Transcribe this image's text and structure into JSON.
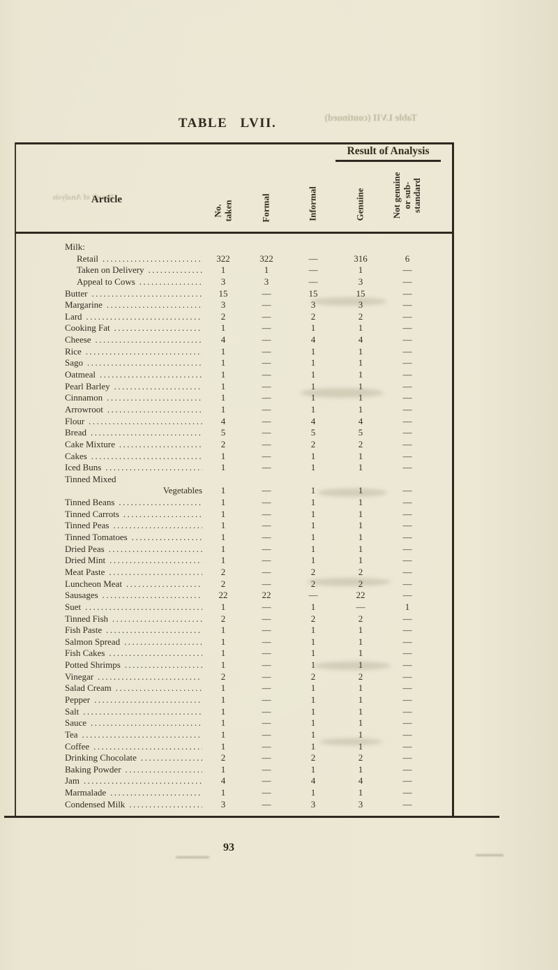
{
  "page": {
    "title": "TABLE LVII.",
    "page_number": "93",
    "background_color": "#eae6d2",
    "ink_color": "#332d21"
  },
  "bleed_through": {
    "top_right": "Table LVII (continued)",
    "left": "Result of Analysis"
  },
  "table": {
    "section_header": "Result of Analysis",
    "columns": {
      "article": "Article",
      "no_taken": [
        "No.",
        "taken"
      ],
      "formal": "Formal",
      "informal": "Informal",
      "genuine": "Genuine",
      "not_genuine": [
        "Not genuine",
        "or sub-",
        "standard"
      ]
    },
    "rows": [
      {
        "a": "Milk:",
        "grp": 1
      },
      {
        "a": "Retail",
        "ind": 1,
        "v": [
          "322",
          "322",
          "—",
          "316",
          "6"
        ]
      },
      {
        "a": "Taken on Delivery",
        "ind": 1,
        "v": [
          "1",
          "1",
          "—",
          "1",
          "—"
        ]
      },
      {
        "a": "Appeal to Cows",
        "ind": 1,
        "v": [
          "3",
          "3",
          "—",
          "3",
          "—"
        ]
      },
      {
        "a": "Butter",
        "v": [
          "15",
          "—",
          "15",
          "15",
          "—"
        ]
      },
      {
        "a": "Margarine",
        "v": [
          "3",
          "—",
          "3",
          "3",
          "—"
        ]
      },
      {
        "a": "Lard",
        "v": [
          "2",
          "—",
          "2",
          "2",
          "—"
        ]
      },
      {
        "a": "Cooking Fat",
        "v": [
          "1",
          "—",
          "1",
          "1",
          "—"
        ]
      },
      {
        "a": "Cheese",
        "v": [
          "4",
          "—",
          "4",
          "4",
          "—"
        ]
      },
      {
        "a": "Rice",
        "v": [
          "1",
          "—",
          "1",
          "1",
          "—"
        ]
      },
      {
        "a": "Sago",
        "v": [
          "1",
          "—",
          "1",
          "1",
          "—"
        ]
      },
      {
        "a": "Oatmeal",
        "v": [
          "1",
          "—",
          "1",
          "1",
          "—"
        ]
      },
      {
        "a": "Pearl Barley",
        "v": [
          "1",
          "—",
          "1",
          "1",
          "—"
        ]
      },
      {
        "a": "Cinnamon",
        "v": [
          "1",
          "—",
          "1",
          "1",
          "—"
        ]
      },
      {
        "a": "Arrowroot",
        "v": [
          "1",
          "—",
          "1",
          "1",
          "—"
        ]
      },
      {
        "a": "Flour",
        "v": [
          "4",
          "—",
          "4",
          "4",
          "—"
        ]
      },
      {
        "a": "Bread",
        "v": [
          "5",
          "—",
          "5",
          "5",
          "—"
        ]
      },
      {
        "a": "Cake Mixture",
        "v": [
          "2",
          "—",
          "2",
          "2",
          "—"
        ]
      },
      {
        "a": "Cakes",
        "v": [
          "1",
          "—",
          "1",
          "1",
          "—"
        ]
      },
      {
        "a": "Iced Buns",
        "v": [
          "1",
          "—",
          "1",
          "1",
          "—"
        ]
      },
      {
        "a": "Tinned Mixed",
        "lead": false
      },
      {
        "a": "Vegetables",
        "cont": 1,
        "lead": false,
        "v": [
          "1",
          "—",
          "1",
          "1",
          "—"
        ]
      },
      {
        "a": "Tinned Beans",
        "v": [
          "1",
          "—",
          "1",
          "1",
          "—"
        ]
      },
      {
        "a": "Tinned Carrots",
        "v": [
          "1",
          "—",
          "1",
          "1",
          "—"
        ]
      },
      {
        "a": "Tinned Peas",
        "v": [
          "1",
          "—",
          "1",
          "1",
          "—"
        ]
      },
      {
        "a": "Tinned Tomatoes",
        "v": [
          "1",
          "—",
          "1",
          "1",
          "—"
        ]
      },
      {
        "a": "Dried Peas",
        "v": [
          "1",
          "—",
          "1",
          "1",
          "—"
        ]
      },
      {
        "a": "Dried Mint",
        "v": [
          "1",
          "—",
          "1",
          "1",
          "—"
        ]
      },
      {
        "a": "Meat Paste",
        "v": [
          "2",
          "—",
          "2",
          "2",
          "—"
        ]
      },
      {
        "a": "Luncheon Meat",
        "v": [
          "2",
          "—",
          "2",
          "2",
          "—"
        ]
      },
      {
        "a": "Sausages",
        "v": [
          "22",
          "22",
          "—",
          "22",
          "—"
        ]
      },
      {
        "a": "Suet",
        "v": [
          "1",
          "—",
          "1",
          "—",
          "1"
        ]
      },
      {
        "a": "Tinned Fish",
        "v": [
          "2",
          "—",
          "2",
          "2",
          "—"
        ]
      },
      {
        "a": "Fish Paste",
        "v": [
          "1",
          "—",
          "1",
          "1",
          "—"
        ]
      },
      {
        "a": "Salmon Spread",
        "v": [
          "1",
          "—",
          "1",
          "1",
          "—"
        ]
      },
      {
        "a": "Fish Cakes",
        "v": [
          "1",
          "—",
          "1",
          "1",
          "—"
        ]
      },
      {
        "a": "Potted Shrimps",
        "v": [
          "1",
          "—",
          "1",
          "1",
          "—"
        ]
      },
      {
        "a": "Vinegar",
        "v": [
          "2",
          "—",
          "2",
          "2",
          "—"
        ]
      },
      {
        "a": "Salad Cream",
        "v": [
          "1",
          "—",
          "1",
          "1",
          "—"
        ]
      },
      {
        "a": "Pepper",
        "v": [
          "1",
          "—",
          "1",
          "1",
          "—"
        ]
      },
      {
        "a": "Salt",
        "v": [
          "1",
          "—",
          "1",
          "1",
          "—"
        ]
      },
      {
        "a": "Sauce",
        "v": [
          "1",
          "—",
          "1",
          "1",
          "—"
        ]
      },
      {
        "a": "Tea",
        "v": [
          "1",
          "—",
          "1",
          "1",
          "—"
        ]
      },
      {
        "a": "Coffee",
        "v": [
          "1",
          "—",
          "1",
          "1",
          "—"
        ]
      },
      {
        "a": "Drinking Chocolate",
        "v": [
          "2",
          "—",
          "2",
          "2",
          "—"
        ]
      },
      {
        "a": "Baking Powder",
        "v": [
          "1",
          "—",
          "1",
          "1",
          "—"
        ]
      },
      {
        "a": "Jam",
        "v": [
          "4",
          "—",
          "4",
          "4",
          "—"
        ]
      },
      {
        "a": "Marmalade",
        "v": [
          "1",
          "—",
          "1",
          "1",
          "—"
        ]
      },
      {
        "a": "Condensed Milk",
        "v": [
          "3",
          "—",
          "3",
          "3",
          "—"
        ]
      }
    ]
  }
}
